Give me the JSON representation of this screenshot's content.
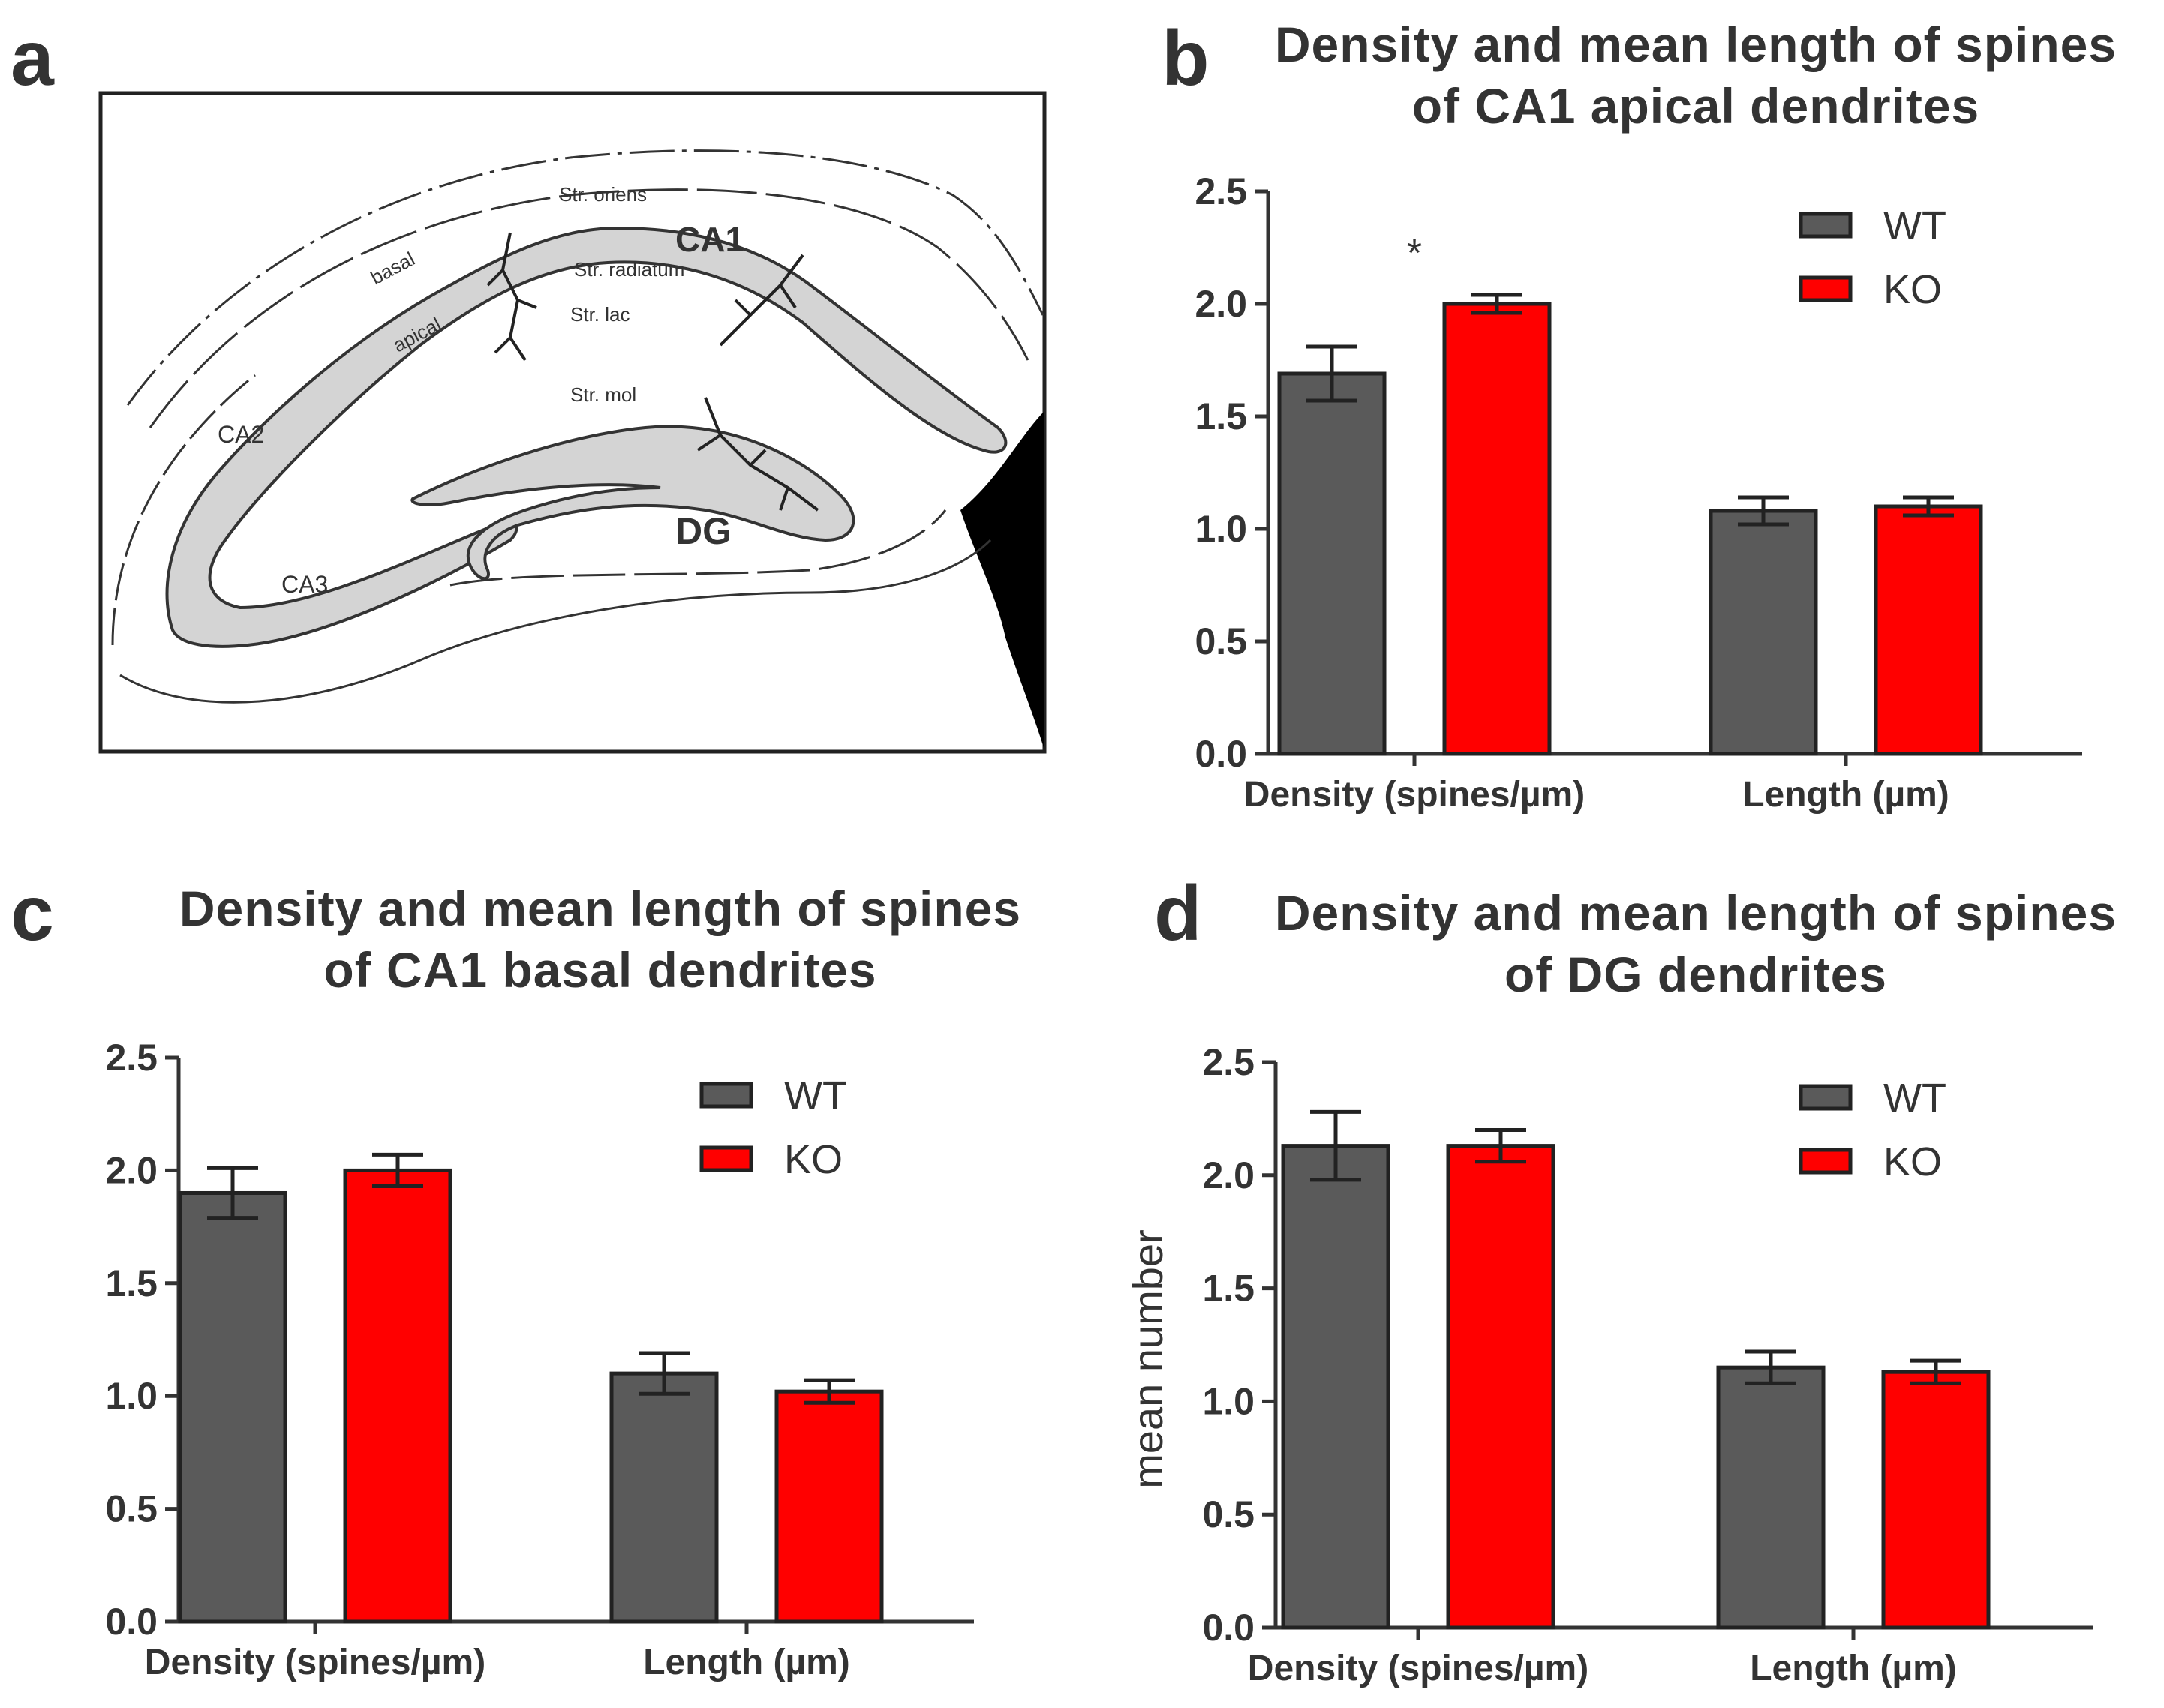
{
  "panels": {
    "a": {
      "letter": "a"
    },
    "b": {
      "letter": "b"
    },
    "c": {
      "letter": "c"
    },
    "d": {
      "letter": "d"
    }
  },
  "diagram": {
    "labels": {
      "ca1": "CA1",
      "ca2": "CA2",
      "ca3": "CA3",
      "dg": "DG",
      "basal": "basal",
      "apical": "apical",
      "str_oriens": "Str. oriens",
      "str_radiatum": "Str. radiatum",
      "str_lac": "Str. lac",
      "str_mol": "Str. mol"
    }
  },
  "colors": {
    "wt": "#5a5a5a",
    "ko": "#ff0000",
    "axis": "#333333",
    "text": "#333333"
  },
  "chart_data": [
    {
      "panel": "b",
      "type": "bar",
      "title_line1": "Density and mean length of spines",
      "title_line2": "of CA1 apical dendrites",
      "categories": [
        "Density (spines/µm)",
        "Length (µm)"
      ],
      "series": [
        {
          "name": "WT",
          "values": [
            1.69,
            1.08
          ],
          "errors": [
            0.12,
            0.06
          ]
        },
        {
          "name": "KO",
          "values": [
            2.0,
            1.1
          ],
          "errors": [
            0.04,
            0.04
          ]
        }
      ],
      "ylim": [
        0,
        2.5
      ],
      "yticks": [
        "0.0",
        "0.5",
        "1.0",
        "1.5",
        "2.0",
        "2.5"
      ],
      "ylabel": "",
      "annotations": [
        {
          "text": "*",
          "category": 0
        }
      ],
      "legend_position": "top-right"
    },
    {
      "panel": "c",
      "type": "bar",
      "title_line1": "Density and mean length of spines",
      "title_line2": "of CA1 basal dendrites",
      "categories": [
        "Density (spines/µm)",
        "Length (µm)"
      ],
      "series": [
        {
          "name": "WT",
          "values": [
            1.9,
            1.1
          ],
          "errors": [
            0.11,
            0.09
          ]
        },
        {
          "name": "KO",
          "values": [
            2.0,
            1.02
          ],
          "errors": [
            0.07,
            0.05
          ]
        }
      ],
      "ylim": [
        0,
        2.5
      ],
      "yticks": [
        "0.0",
        "0.5",
        "1.0",
        "1.5",
        "2.0",
        "2.5"
      ],
      "ylabel": "",
      "annotations": [],
      "legend_position": "top-right"
    },
    {
      "panel": "d",
      "type": "bar",
      "title_line1": "Density and mean length of spines",
      "title_line2": "of DG dendrites",
      "categories": [
        "Density (spines/µm)",
        "Length (µm)"
      ],
      "series": [
        {
          "name": "WT",
          "values": [
            2.13,
            1.15
          ],
          "errors": [
            0.15,
            0.07
          ]
        },
        {
          "name": "KO",
          "values": [
            2.13,
            1.13
          ],
          "errors": [
            0.07,
            0.05
          ]
        }
      ],
      "ylim": [
        0,
        2.5
      ],
      "yticks": [
        "0.0",
        "0.5",
        "1.0",
        "1.5",
        "2.0",
        "2.5"
      ],
      "ylabel": "mean number",
      "annotations": [],
      "legend_position": "top-right"
    }
  ]
}
